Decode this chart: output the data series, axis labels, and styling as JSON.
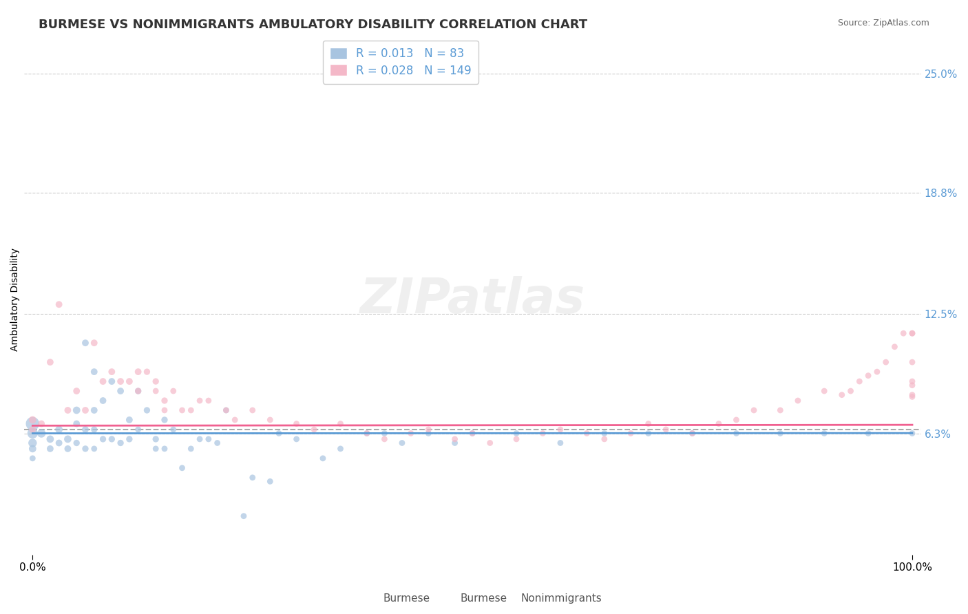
{
  "title": "BURMESE VS NONIMMIGRANTS AMBULATORY DISABILITY CORRELATION CHART",
  "source": "Source: ZipAtlas.com",
  "xlabel": "",
  "ylabel": "Ambulatory Disability",
  "legend_burmese": "Burmese",
  "legend_nonimmigrants": "Nonimmigrants",
  "burmese_R": 0.013,
  "burmese_N": 83,
  "nonimmigrant_R": 0.028,
  "nonimmigrant_N": 149,
  "burmese_color": "#a8c4e0",
  "nonimmigrant_color": "#f4b8c8",
  "trend_blue": "#5b9bd5",
  "trend_pink": "#f06090",
  "trend_gray": "#aaaaaa",
  "ylim": [
    0,
    0.265
  ],
  "xlim": [
    -0.01,
    1.01
  ],
  "yticks": [
    0.063,
    0.125,
    0.188,
    0.25
  ],
  "ytick_labels": [
    "6.3%",
    "12.5%",
    "18.8%",
    "25.0%"
  ],
  "xticks": [
    0.0,
    1.0
  ],
  "xtick_labels": [
    "0.0%",
    "100.0%"
  ],
  "background_color": "#ffffff",
  "watermark": "ZIPatlas",
  "title_fontsize": 13,
  "label_fontsize": 10,
  "tick_fontsize": 11,
  "burmese_scatter": {
    "x": [
      0.0,
      0.0,
      0.0,
      0.0,
      0.0,
      0.01,
      0.02,
      0.02,
      0.03,
      0.03,
      0.04,
      0.04,
      0.05,
      0.05,
      0.05,
      0.06,
      0.06,
      0.06,
      0.07,
      0.07,
      0.07,
      0.07,
      0.08,
      0.08,
      0.09,
      0.09,
      0.1,
      0.1,
      0.11,
      0.11,
      0.12,
      0.12,
      0.13,
      0.14,
      0.14,
      0.15,
      0.15,
      0.16,
      0.17,
      0.18,
      0.19,
      0.2,
      0.21,
      0.22,
      0.24,
      0.25,
      0.27,
      0.28,
      0.3,
      0.33,
      0.35,
      0.38,
      0.4,
      0.42,
      0.45,
      0.48,
      0.5,
      0.55,
      0.6,
      0.65,
      0.7,
      0.75,
      0.8,
      0.85,
      0.9,
      0.95,
      1.0
    ],
    "y": [
      0.068,
      0.063,
      0.058,
      0.055,
      0.05,
      0.063,
      0.06,
      0.055,
      0.065,
      0.058,
      0.06,
      0.055,
      0.075,
      0.068,
      0.058,
      0.11,
      0.065,
      0.055,
      0.095,
      0.075,
      0.065,
      0.055,
      0.08,
      0.06,
      0.09,
      0.06,
      0.085,
      0.058,
      0.07,
      0.06,
      0.085,
      0.065,
      0.075,
      0.06,
      0.055,
      0.07,
      0.055,
      0.065,
      0.045,
      0.055,
      0.06,
      0.06,
      0.058,
      0.075,
      0.02,
      0.04,
      0.038,
      0.063,
      0.06,
      0.05,
      0.055,
      0.063,
      0.063,
      0.058,
      0.063,
      0.058,
      0.063,
      0.063,
      0.058,
      0.063,
      0.063,
      0.063,
      0.063,
      0.063,
      0.063,
      0.063,
      0.063
    ],
    "sizes": [
      200,
      120,
      80,
      60,
      40,
      80,
      60,
      50,
      60,
      50,
      60,
      50,
      60,
      50,
      45,
      50,
      50,
      45,
      50,
      50,
      45,
      40,
      50,
      45,
      50,
      45,
      50,
      45,
      50,
      45,
      45,
      40,
      45,
      45,
      40,
      45,
      40,
      40,
      40,
      40,
      40,
      40,
      40,
      40,
      40,
      40,
      40,
      40,
      40,
      40,
      40,
      40,
      40,
      40,
      40,
      40,
      40,
      40,
      40,
      40,
      40,
      40,
      40,
      40,
      40,
      40,
      40
    ]
  },
  "nonimmigrant_scatter": {
    "x": [
      0.0,
      0.0,
      0.01,
      0.02,
      0.03,
      0.04,
      0.05,
      0.06,
      0.07,
      0.08,
      0.09,
      0.1,
      0.11,
      0.12,
      0.12,
      0.13,
      0.14,
      0.14,
      0.15,
      0.15,
      0.16,
      0.17,
      0.18,
      0.19,
      0.2,
      0.22,
      0.23,
      0.25,
      0.27,
      0.3,
      0.32,
      0.35,
      0.38,
      0.4,
      0.43,
      0.45,
      0.48,
      0.5,
      0.52,
      0.55,
      0.58,
      0.6,
      0.63,
      0.65,
      0.68,
      0.7,
      0.72,
      0.75,
      0.78,
      0.8,
      0.82,
      0.85,
      0.87,
      0.9,
      0.92,
      0.93,
      0.94,
      0.95,
      0.96,
      0.97,
      0.98,
      0.99,
      1.0,
      1.0,
      1.0,
      1.0,
      1.0,
      1.0,
      1.0
    ],
    "y": [
      0.07,
      0.065,
      0.068,
      0.1,
      0.13,
      0.075,
      0.085,
      0.075,
      0.11,
      0.09,
      0.095,
      0.09,
      0.09,
      0.095,
      0.085,
      0.095,
      0.09,
      0.085,
      0.08,
      0.075,
      0.085,
      0.075,
      0.075,
      0.08,
      0.08,
      0.075,
      0.07,
      0.075,
      0.07,
      0.068,
      0.065,
      0.068,
      0.063,
      0.06,
      0.063,
      0.065,
      0.06,
      0.063,
      0.058,
      0.06,
      0.063,
      0.065,
      0.063,
      0.06,
      0.063,
      0.068,
      0.065,
      0.063,
      0.068,
      0.07,
      0.075,
      0.075,
      0.08,
      0.085,
      0.083,
      0.085,
      0.09,
      0.093,
      0.095,
      0.1,
      0.108,
      0.115,
      0.115,
      0.1,
      0.09,
      0.088,
      0.083,
      0.082,
      0.115
    ],
    "sizes": [
      60,
      50,
      50,
      50,
      50,
      50,
      50,
      50,
      50,
      50,
      50,
      50,
      50,
      50,
      45,
      45,
      45,
      40,
      45,
      40,
      40,
      40,
      40,
      40,
      40,
      40,
      40,
      40,
      40,
      40,
      40,
      40,
      40,
      40,
      40,
      40,
      40,
      40,
      40,
      40,
      40,
      40,
      40,
      40,
      40,
      40,
      40,
      40,
      40,
      40,
      40,
      40,
      40,
      40,
      40,
      40,
      40,
      40,
      40,
      40,
      40,
      40,
      40,
      40,
      40,
      40,
      40,
      40,
      40
    ]
  }
}
